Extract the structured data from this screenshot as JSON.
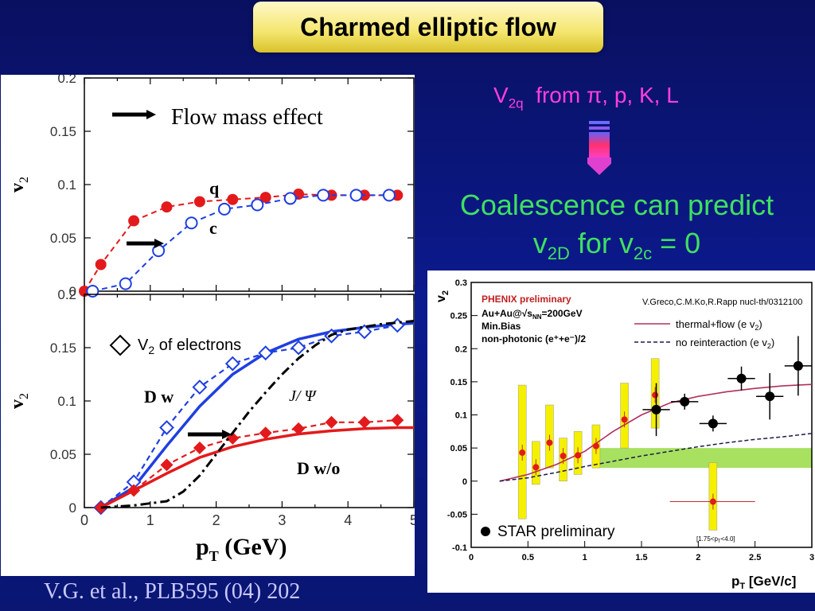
{
  "title": "Charmed elliptic flow",
  "citation": "V.G. et al., PLB595 (04) 202",
  "right_text": {
    "v2q_main": "V",
    "v2q_sub": "2q",
    "v2q_rest": "from π, p, K, L",
    "coalescence_line1": "Coalescence can predict",
    "coalescence_v": "v",
    "coalescence_sub1": "2D",
    "coalescence_mid": " for v",
    "coalescence_sub2": "2c",
    "coalescence_end": " = 0"
  },
  "colors": {
    "background": "#0b1a8f",
    "title_box": "#f4e66e",
    "v2q_text": "#ff3fe0",
    "coalescence_text": "#3fe060",
    "citation_text": "#c9c9ff",
    "red": "#e31a1c",
    "blue": "#1f3fe0",
    "black": "#000000",
    "yellow_box": "#f5f000",
    "green_band": "#a8e060",
    "phenix_line": "#b0305a"
  },
  "chart_data": [
    {
      "type": "line",
      "panel": "top-left",
      "xlim": [
        0,
        5
      ],
      "ylim": [
        0,
        0.2
      ],
      "yticks": [
        "0",
        "0.05",
        "0.1",
        "0.15",
        "0.2"
      ],
      "ylabel_main": "v",
      "ylabel_sub": "2",
      "annotation": "Flow mass effect",
      "series": [
        {
          "name": "q",
          "marker": "filled-circle",
          "color": "#e31a1c",
          "x": [
            0.0,
            0.25,
            0.75,
            1.25,
            1.75,
            2.25,
            2.75,
            3.25,
            3.75,
            4.25,
            4.75
          ],
          "y": [
            0.0,
            0.025,
            0.066,
            0.079,
            0.084,
            0.086,
            0.088,
            0.091,
            0.09,
            0.09,
            0.09
          ]
        },
        {
          "name": "c",
          "marker": "open-circle",
          "color": "#1f3fe0",
          "x": [
            0.125,
            0.625,
            1.125,
            1.625,
            2.125,
            2.625,
            3.125,
            3.625,
            4.125,
            4.625
          ],
          "y": [
            0.0,
            0.007,
            0.038,
            0.064,
            0.077,
            0.081,
            0.087,
            0.09,
            0.09,
            0.09
          ]
        }
      ]
    },
    {
      "type": "line",
      "panel": "bottom-left",
      "xlim": [
        0,
        5
      ],
      "ylim": [
        0,
        0.2
      ],
      "xticks": [
        "0",
        "1",
        "2",
        "3",
        "4",
        "5"
      ],
      "yticks": [
        "0",
        "0.05",
        "0.1",
        "0.15",
        "0.2"
      ],
      "xlabel_main": "p",
      "xlabel_sub": "T",
      "xlabel_unit": " (GeV)",
      "ylabel_main": "v",
      "ylabel_sub": "2",
      "legend_main": "V",
      "legend_sub": "2",
      "legend_rest": " of electrons",
      "labels": {
        "dw": "D w",
        "dwo": "D w/o",
        "jpsi": "J/ Ψ"
      },
      "series": [
        {
          "name": "D w",
          "style": "solid",
          "color": "#1f3fe0",
          "x": [
            0.25,
            0.75,
            1.25,
            1.75,
            2.25,
            2.75,
            3.25,
            3.75,
            4.25,
            4.75,
            5.0
          ],
          "y": [
            0.0,
            0.019,
            0.058,
            0.095,
            0.125,
            0.145,
            0.158,
            0.165,
            0.169,
            0.172,
            0.173
          ]
        },
        {
          "name": "D w (electrons)",
          "marker": "open-diamond",
          "style": "dashed",
          "color": "#1f3fe0",
          "x": [
            0.25,
            0.75,
            1.25,
            1.75,
            2.25,
            2.75,
            3.25,
            3.75,
            4.25,
            4.75
          ],
          "y": [
            0.0,
            0.024,
            0.075,
            0.113,
            0.135,
            0.145,
            0.15,
            0.161,
            0.165,
            0.171
          ]
        },
        {
          "name": "D w/o",
          "style": "solid",
          "color": "#e31a1c",
          "x": [
            0.25,
            0.75,
            1.25,
            1.75,
            2.25,
            2.75,
            3.25,
            3.75,
            4.25,
            4.75,
            5.0
          ],
          "y": [
            0.0,
            0.016,
            0.032,
            0.047,
            0.057,
            0.064,
            0.069,
            0.072,
            0.074,
            0.075,
            0.075
          ]
        },
        {
          "name": "D w/o (electrons)",
          "marker": "filled-diamond",
          "style": "dashed",
          "color": "#e31a1c",
          "x": [
            0.25,
            0.75,
            1.25,
            1.75,
            2.25,
            2.75,
            3.25,
            3.75,
            4.25,
            4.75
          ],
          "y": [
            0.0,
            0.016,
            0.04,
            0.056,
            0.065,
            0.07,
            0.074,
            0.08,
            0.08,
            0.082
          ]
        },
        {
          "name": "J/Ψ",
          "style": "dash-dot",
          "color": "#000000",
          "x": [
            0.25,
            0.75,
            1.25,
            1.5,
            1.75,
            2.0,
            2.25,
            2.5,
            2.75,
            3.0,
            3.25,
            3.5,
            3.75,
            4.0,
            4.5,
            5.0
          ],
          "y": [
            0.0,
            0.002,
            0.006,
            0.015,
            0.03,
            0.05,
            0.07,
            0.09,
            0.108,
            0.125,
            0.14,
            0.152,
            0.162,
            0.167,
            0.172,
            0.175
          ]
        }
      ]
    },
    {
      "type": "scatter",
      "panel": "right",
      "xlim": [
        0,
        3
      ],
      "ylim": [
        -0.1,
        0.3
      ],
      "xticks": [
        "0",
        "0.5",
        "1",
        "1.5",
        "2",
        "2.5",
        "3"
      ],
      "yticks": [
        "-0.1",
        "-0.05",
        "0",
        "0.05",
        "0.1",
        "0.15",
        "0.2",
        "0.25",
        "0.3"
      ],
      "ylabel_main": "v",
      "ylabel_sub": "2",
      "xlabel_main": "p",
      "xlabel_sub": "T",
      "xlabel_unit": " [GeV/c]",
      "phenix_title": "PHENIX preliminary",
      "info_lines": [
        "Au+Au@√s",
        "=200GeV",
        "Min.Bias",
        "non-photonic (e⁺+e⁻)/2"
      ],
      "info_sub": "NN",
      "reference": "V.Greco,C.M.Ko,R.Rapp nucl-th/0312100",
      "legend_thermal": "thermal+flow (e v",
      "legend_noreint": "no reinteraction (e v",
      "legend_sub": "2",
      "legend_close": ")",
      "star_label": "STAR preliminary",
      "range_note": "[1.75<p",
      "range_note_sub": "T",
      "range_note_end": "<4.0]",
      "phenix_points": {
        "x": [
          0.45,
          0.57,
          0.69,
          0.81,
          0.94,
          1.1,
          1.35,
          1.62,
          2.13
        ],
        "y": [
          0.043,
          0.021,
          0.058,
          0.038,
          0.039,
          0.053,
          0.093,
          0.13,
          -0.031
        ],
        "sys_lo": [
          -0.057,
          -0.005,
          0.02,
          0.0,
          0.01,
          0.02,
          0.05,
          0.08,
          -0.074
        ],
        "sys_hi": [
          0.145,
          0.06,
          0.115,
          0.065,
          0.075,
          0.085,
          0.148,
          0.185,
          0.028
        ]
      },
      "star_points": {
        "x": [
          1.63,
          1.88,
          2.13,
          2.38,
          2.63,
          2.88
        ],
        "y": [
          0.108,
          0.12,
          0.087,
          0.155,
          0.128,
          0.174
        ],
        "err": [
          0.04,
          0.012,
          0.012,
          0.018,
          0.035,
          0.045
        ]
      },
      "thermal_flow_curve": {
        "x": [
          0.25,
          0.5,
          0.75,
          1.0,
          1.25,
          1.5,
          1.75,
          2.0,
          2.25,
          2.5,
          2.75,
          3.0
        ],
        "y": [
          0.0,
          0.01,
          0.025,
          0.045,
          0.075,
          0.1,
          0.118,
          0.128,
          0.135,
          0.14,
          0.144,
          0.146
        ]
      },
      "no_reinteraction_curve": {
        "x": [
          0.25,
          0.5,
          0.75,
          1.0,
          1.25,
          1.5,
          1.75,
          2.0,
          2.25,
          2.5,
          2.75,
          3.0
        ],
        "y": [
          0.0,
          0.005,
          0.013,
          0.022,
          0.03,
          0.038,
          0.045,
          0.052,
          0.058,
          0.063,
          0.067,
          0.072
        ]
      },
      "green_band": {
        "x0": 1.1,
        "x1": 3.0,
        "y0": 0.02,
        "y1": 0.05
      }
    }
  ]
}
